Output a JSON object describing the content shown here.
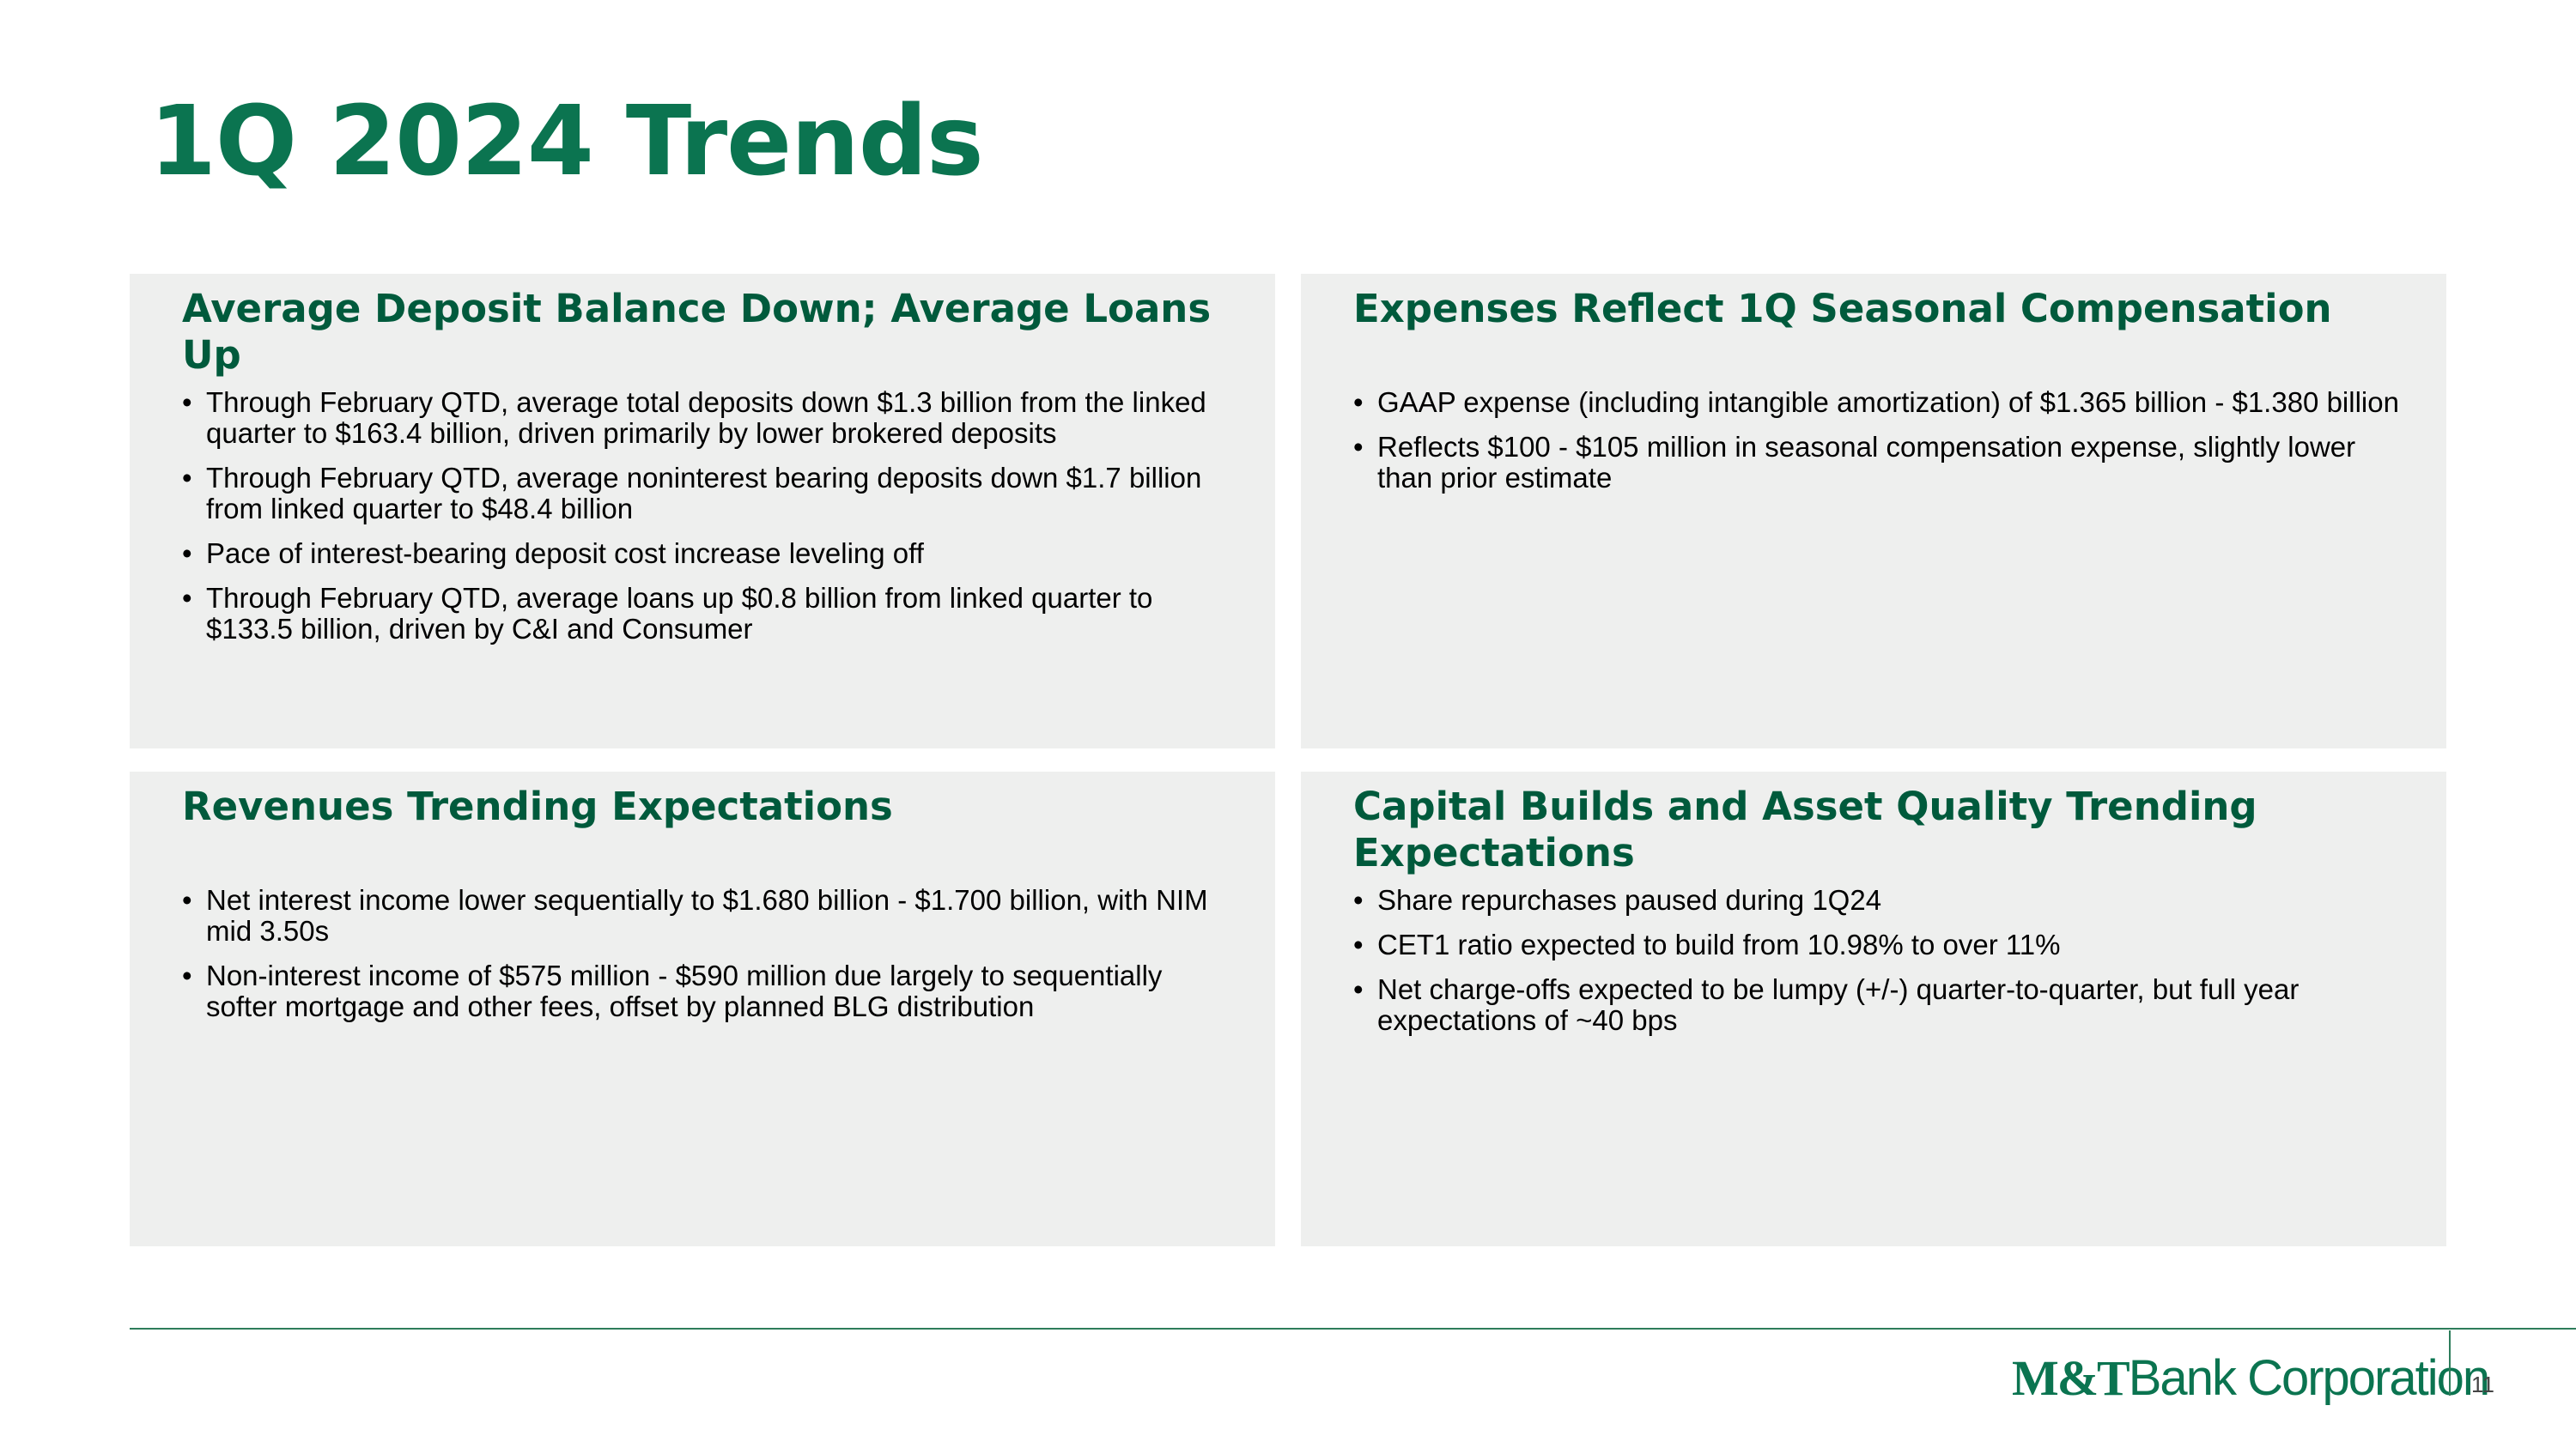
{
  "header": {
    "title": "1Q 2024 Trends"
  },
  "panels": [
    {
      "heading": "Average Deposit Balance Down; Average Loans Up",
      "bullets": [
        "Through February QTD, average total deposits down $1.3 billion from the linked quarter to $163.4 billion, driven primarily by lower brokered deposits",
        "Through February QTD, average noninterest bearing deposits down $1.7 billion from linked quarter to $48.4 billion",
        "Pace of interest-bearing deposit cost increase leveling off",
        "Through February QTD, average loans up $0.8 billion from linked quarter to $133.5 billion,  driven by C&I and Consumer"
      ]
    },
    {
      "heading": "Expenses Reflect 1Q Seasonal Compensation",
      "bullets": [
        "GAAP expense (including intangible amortization) of $1.365 billion - $1.380 billion",
        "Reflects $100 - $105 million in seasonal compensation expense, slightly lower than prior estimate"
      ]
    },
    {
      "heading": "Revenues Trending Expectations",
      "bullets": [
        "Net interest income lower sequentially to $1.680 billion - $1.700 billion, with NIM mid 3.50s",
        "Non-interest income of $575 million - $590 million due largely to sequentially softer mortgage and other fees, offset by planned BLG distribution"
      ]
    },
    {
      "heading": "Capital Builds and Asset Quality Trending Expectations",
      "bullets": [
        "Share repurchases paused during 1Q24",
        "CET1 ratio expected to build from 10.98% to over 11%",
        "Net charge-offs expected to be lumpy (+/-) quarter-to-quarter, but full year expectations of ~40 bps"
      ]
    }
  ],
  "footer": {
    "logo_mark": "M&T",
    "logo_text": "Bank Corporation",
    "page_number": "11"
  }
}
